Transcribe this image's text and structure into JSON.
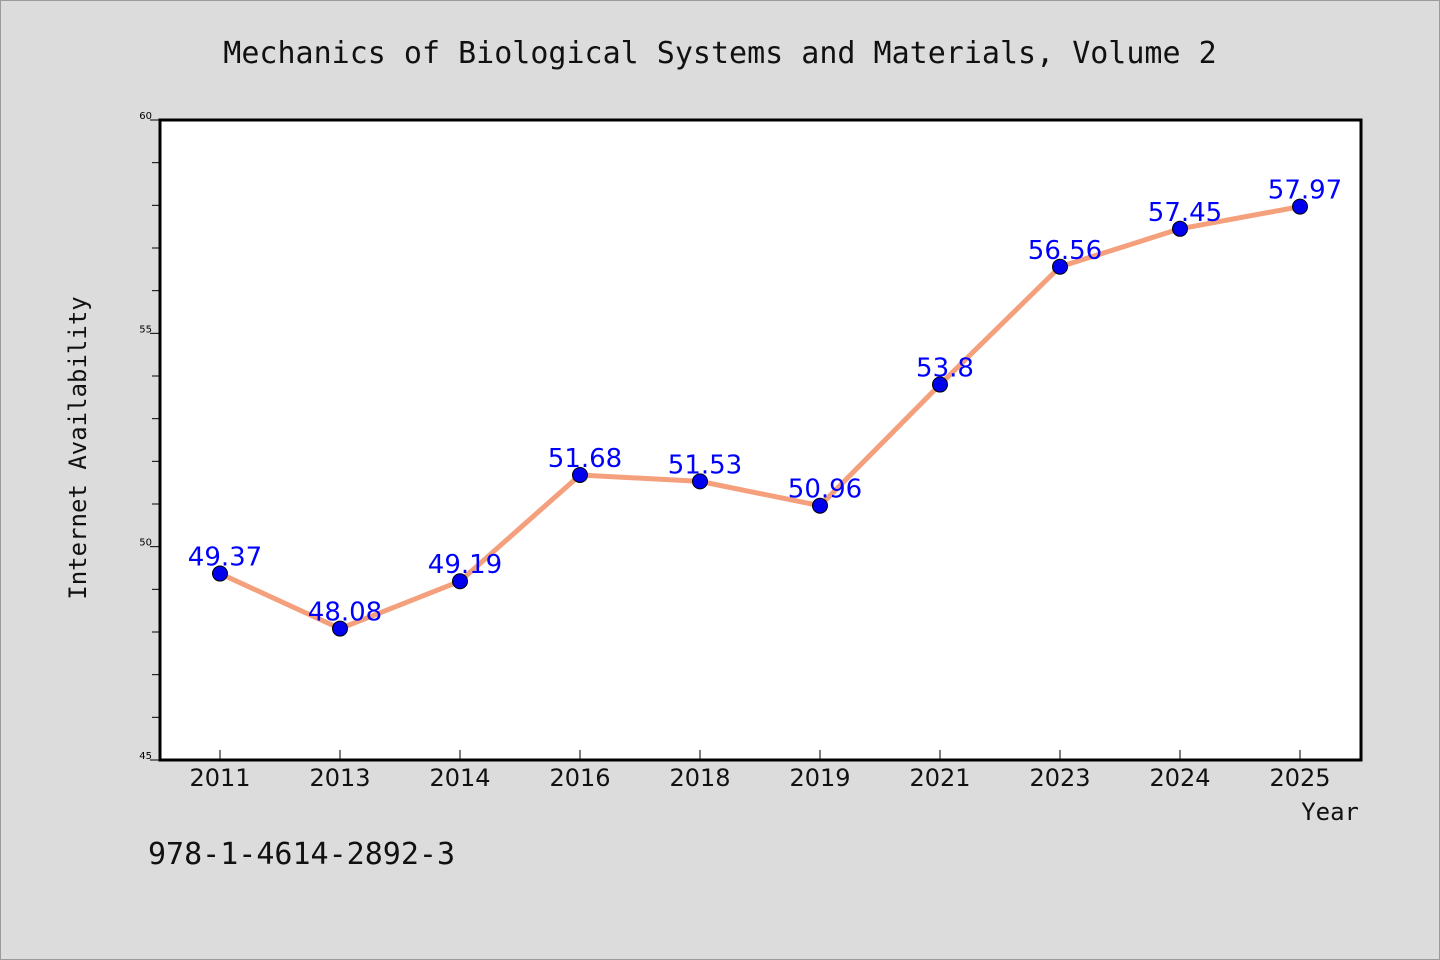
{
  "chart_data": {
    "type": "line",
    "title": "Mechanics of Biological Systems and Materials, Volume 2",
    "xlabel": "Year",
    "ylabel": "Internet Availability",
    "footnote": "978-1-4614-2892-3",
    "categories": [
      "2011",
      "2013",
      "2014",
      "2016",
      "2018",
      "2019",
      "2021",
      "2023",
      "2024",
      "2025"
    ],
    "series": [
      {
        "values": [
          49.37,
          48.08,
          49.19,
          51.68,
          51.53,
          50.96,
          53.8,
          56.56,
          57.45,
          57.97
        ],
        "data_labels": [
          "49.37",
          "48.08",
          "49.19",
          "51.68",
          "51.53",
          "50.96",
          "53.8",
          "56.56",
          "57.45",
          "57.97"
        ]
      }
    ],
    "ylim": [
      45,
      60
    ],
    "yticks": [
      "45",
      "50",
      "55",
      "60"
    ],
    "y_minor_step": 1,
    "grid": false,
    "legend": "none",
    "colors": {
      "line": "#f4a07c",
      "marker": "#0000ee",
      "label": "#0000ff",
      "plot_bg": "#ffffff",
      "page_bg": "#dcdcdc"
    }
  }
}
